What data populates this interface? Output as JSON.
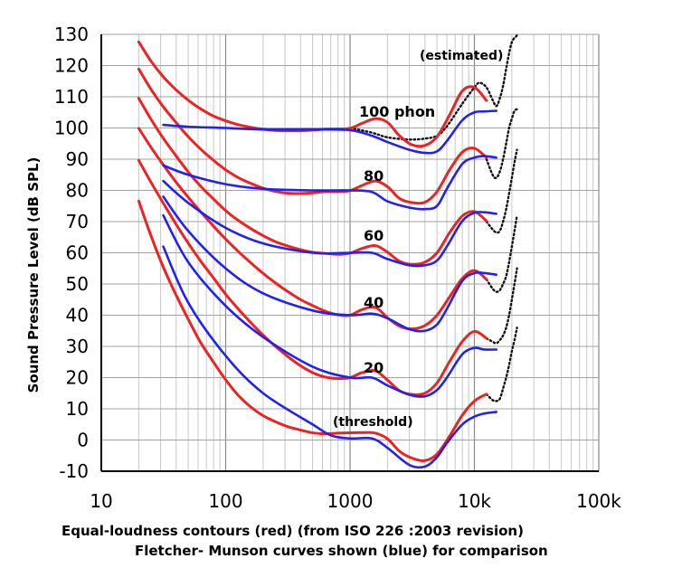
{
  "chart_data": {
    "type": "line",
    "x_scale": "log",
    "xlim": [
      10,
      100000
    ],
    "ylim": [
      -10,
      130
    ],
    "grid": true,
    "xticks": [
      "10",
      "100",
      "1000",
      "10k",
      "100k"
    ],
    "yticks": [
      "130",
      "120",
      "110",
      "100",
      "90",
      "80",
      "70",
      "60",
      "50",
      "40",
      "30",
      "20",
      "10",
      "0",
      "-10"
    ],
    "ylabel": "Sound Pressure Level (dB SPL)",
    "xlabel_line1": "Equal-loudness contours (red)  (from ISO 226 :2003 revision)",
    "xlabel_line2": "Fletcher- Munson curves shown (blue) for comparison",
    "colors": {
      "red": "#ee2222",
      "blue": "#2222ee",
      "dotted": "#111111"
    },
    "annotations": [
      "(estimated)",
      "100 phon",
      "80",
      "60",
      "40",
      "20",
      "(threshold)"
    ],
    "series": [
      {
        "color": "red",
        "x": [
          20,
          25,
          31.5,
          40,
          50,
          63,
          80,
          100,
          125,
          160,
          200,
          250,
          315,
          400,
          500,
          630,
          800,
          1000,
          1250,
          1600,
          2000,
          2500,
          3150,
          4000,
          5000,
          6300,
          8000,
          10000,
          12500
        ],
        "y": [
          127.6,
          121.5,
          116.4,
          112.2,
          108.9,
          106.1,
          103.8,
          102.3,
          101.1,
          100.2,
          99.6,
          99.2,
          99.1,
          99.1,
          99.3,
          99.6,
          99.7,
          99.9,
          101.5,
          103,
          101.8,
          97.5,
          94.6,
          94.4,
          97.2,
          104.1,
          111.9,
          113,
          108.8
        ]
      },
      {
        "color": "red",
        "x": [
          20,
          25,
          31.5,
          40,
          50,
          63,
          80,
          100,
          125,
          160,
          200,
          250,
          315,
          400,
          500,
          630,
          800,
          1000,
          1250,
          1600,
          2000,
          2500,
          3150,
          4000,
          5000,
          6300,
          8000,
          10000,
          12500
        ],
        "y": [
          118.9,
          112.5,
          106.8,
          101.7,
          97.2,
          93.2,
          89.6,
          86.6,
          84.2,
          82.2,
          80.7,
          79.7,
          79.1,
          79,
          79.2,
          79.6,
          79.6,
          79.9,
          81.6,
          83,
          81.2,
          77.4,
          76.1,
          76.2,
          79.6,
          86.5,
          92.3,
          93.5,
          90.5
        ]
      },
      {
        "color": "red",
        "x": [
          20,
          25,
          31.5,
          40,
          50,
          63,
          80,
          100,
          125,
          160,
          200,
          250,
          315,
          400,
          500,
          630,
          800,
          1000,
          1250,
          1600,
          2000,
          2500,
          3150,
          4000,
          5000,
          6300,
          8000,
          10000,
          12500
        ],
        "y": [
          109.5,
          102.9,
          96.7,
          91,
          85.9,
          81.3,
          77.2,
          73.5,
          70.5,
          67.7,
          65.5,
          63.6,
          62.2,
          61,
          60.2,
          59.8,
          59.5,
          59.9,
          61.4,
          62.3,
          60.2,
          57.3,
          56.3,
          57,
          60,
          66.4,
          71.8,
          73.2,
          70.2
        ]
      },
      {
        "color": "red",
        "x": [
          20,
          25,
          31.5,
          40,
          50,
          63,
          80,
          100,
          125,
          160,
          200,
          250,
          315,
          400,
          500,
          630,
          800,
          1000,
          1250,
          1600,
          2000,
          2500,
          3150,
          4000,
          5000,
          6300,
          8000,
          10000,
          12500
        ],
        "y": [
          99.9,
          93.9,
          88.2,
          82.6,
          77.8,
          73.1,
          68.5,
          64.4,
          60.6,
          56.7,
          53.4,
          50.4,
          47.6,
          45,
          43.1,
          41.3,
          40.1,
          40,
          41.8,
          42.5,
          39.2,
          36.5,
          35.6,
          36.7,
          40,
          45.8,
          51.8,
          54.3,
          51.5
        ]
      },
      {
        "color": "red",
        "x": [
          20,
          25,
          31.5,
          40,
          50,
          63,
          80,
          100,
          125,
          160,
          200,
          250,
          315,
          400,
          500,
          630,
          800,
          1000,
          1250,
          1600,
          2000,
          2500,
          3150,
          4000,
          5000,
          6300,
          8000,
          10000,
          12500
        ],
        "y": [
          89.6,
          82.7,
          75.9,
          69.1,
          63.1,
          57.3,
          51.9,
          46.7,
          42.2,
          37.5,
          33.6,
          30.1,
          26.8,
          23.8,
          21.6,
          20.2,
          19.7,
          20,
          21.6,
          22.2,
          19.2,
          15.8,
          14.6,
          15,
          18.3,
          25.1,
          31.6,
          34.8,
          32.6
        ]
      },
      {
        "color": "red",
        "x": [
          20,
          25,
          31.5,
          40,
          50,
          63,
          80,
          100,
          125,
          160,
          200,
          250,
          315,
          400,
          500,
          630,
          800,
          1000,
          1250,
          1600,
          2000,
          2500,
          3150,
          4000,
          5000,
          6300,
          8000,
          10000,
          12500
        ],
        "y": [
          76.6,
          65.6,
          55.4,
          46.4,
          38.7,
          31.2,
          24.9,
          19.3,
          14.5,
          10.5,
          7.8,
          5.9,
          4.3,
          3.2,
          2.3,
          2,
          2.2,
          2.3,
          2.4,
          2.2,
          0.4,
          -3.6,
          -5.8,
          -6.6,
          -4.5,
          1.2,
          8,
          12.5,
          14.7
        ]
      },
      {
        "color": "blue",
        "x": [
          31.5,
          50,
          100,
          200,
          500,
          1000,
          1500,
          2000,
          3000,
          4000,
          5000,
          6000,
          8000,
          10000,
          12000,
          15000
        ],
        "y": [
          101,
          100.4,
          100,
          99.5,
          99.5,
          99.3,
          97.5,
          95.5,
          93,
          92,
          92.5,
          95.8,
          102.5,
          105,
          105.3,
          105.5
        ]
      },
      {
        "color": "blue",
        "x": [
          31.5,
          50,
          100,
          200,
          500,
          1000,
          1500,
          2000,
          3000,
          4000,
          5000,
          6000,
          8000,
          10000,
          12000,
          15000
        ],
        "y": [
          88,
          85,
          82,
          80.5,
          80,
          80,
          79.5,
          76.5,
          74.5,
          74,
          75,
          80.5,
          88.5,
          90.5,
          91,
          90.5
        ]
      },
      {
        "color": "blue",
        "x": [
          31.5,
          50,
          100,
          200,
          500,
          1000,
          1500,
          2000,
          3000,
          4000,
          5000,
          6000,
          8000,
          10000,
          12000,
          15000
        ],
        "y": [
          83,
          76,
          68,
          63,
          60,
          60,
          60,
          58,
          56,
          56,
          57.5,
          62,
          70.2,
          72.8,
          73,
          72.5
        ]
      },
      {
        "color": "blue",
        "x": [
          31.5,
          50,
          100,
          200,
          500,
          1000,
          1500,
          2000,
          3000,
          4000,
          5000,
          6000,
          8000,
          10000,
          12000,
          15000
        ],
        "y": [
          78,
          67,
          55,
          47,
          41.5,
          40,
          40.5,
          39,
          35.5,
          35,
          37,
          42,
          51,
          53.5,
          53.5,
          53
        ]
      },
      {
        "color": "blue",
        "x": [
          31.5,
          50,
          100,
          200,
          500,
          1000,
          1500,
          2000,
          3000,
          4000,
          5000,
          6000,
          8000,
          10000,
          12000,
          15000
        ],
        "y": [
          72,
          57,
          43,
          33,
          23.5,
          20,
          20,
          17.5,
          14.5,
          14,
          16,
          20,
          27.5,
          29.5,
          29,
          29
        ]
      },
      {
        "color": "blue",
        "x": [
          31.5,
          50,
          100,
          200,
          500,
          700,
          1000,
          1500,
          2000,
          3000,
          4000,
          5000,
          6000,
          8000,
          10000,
          12000,
          15000
        ],
        "y": [
          62,
          44,
          27,
          15,
          5,
          1.5,
          0.5,
          0.5,
          -2.5,
          -8,
          -8.5,
          -5.5,
          -1,
          5,
          7.5,
          8.5,
          9
        ]
      },
      {
        "color": "dotted",
        "x": [
          1000,
          1500,
          2000,
          3000,
          4000,
          5000,
          6000,
          8000,
          10000,
          11000,
          12500,
          14000,
          15000,
          16000,
          17000,
          18000,
          18800,
          19500,
          20000,
          20800,
          21600,
          22200
        ],
        "y": [
          100,
          98.5,
          97,
          96.3,
          96.6,
          97.5,
          100.5,
          107.8,
          113,
          114.5,
          113,
          109,
          107,
          109.5,
          113.5,
          119,
          123,
          126,
          127.5,
          128.7,
          129.3,
          130
        ]
      },
      {
        "color": "dotted",
        "x": [
          12500,
          14000,
          15000,
          16000,
          17000,
          18000,
          19000,
          20000,
          21000,
          22000
        ],
        "y": [
          90,
          85,
          84,
          86,
          90,
          95,
          100,
          103,
          105.5,
          106
        ]
      },
      {
        "color": "dotted",
        "x": [
          12500,
          14000,
          15000,
          16000,
          17000,
          18000,
          19000,
          20000,
          21000,
          22000
        ],
        "y": [
          70,
          67.5,
          66.5,
          67,
          70,
          74,
          79,
          84,
          89,
          93
        ]
      },
      {
        "color": "dotted",
        "x": [
          12500,
          14000,
          15000,
          16000,
          17000,
          18000,
          19000,
          20000,
          21000,
          22000
        ],
        "y": [
          51.5,
          48.5,
          47.5,
          48,
          50,
          52.5,
          57,
          62,
          67,
          72
        ]
      },
      {
        "color": "dotted",
        "x": [
          12500,
          14000,
          15000,
          16000,
          17000,
          18000,
          19000,
          20000,
          21000,
          22000
        ],
        "y": [
          32.6,
          31.5,
          31,
          32,
          33.5,
          36,
          40,
          45,
          50,
          55
        ]
      },
      {
        "color": "dotted",
        "x": [
          12500,
          14000,
          15000,
          16000,
          17000,
          18000,
          19000,
          20000,
          21000,
          22000
        ],
        "y": [
          14.7,
          12.8,
          12.5,
          13.2,
          16.5,
          20,
          24,
          28.5,
          32,
          36
        ]
      }
    ]
  }
}
